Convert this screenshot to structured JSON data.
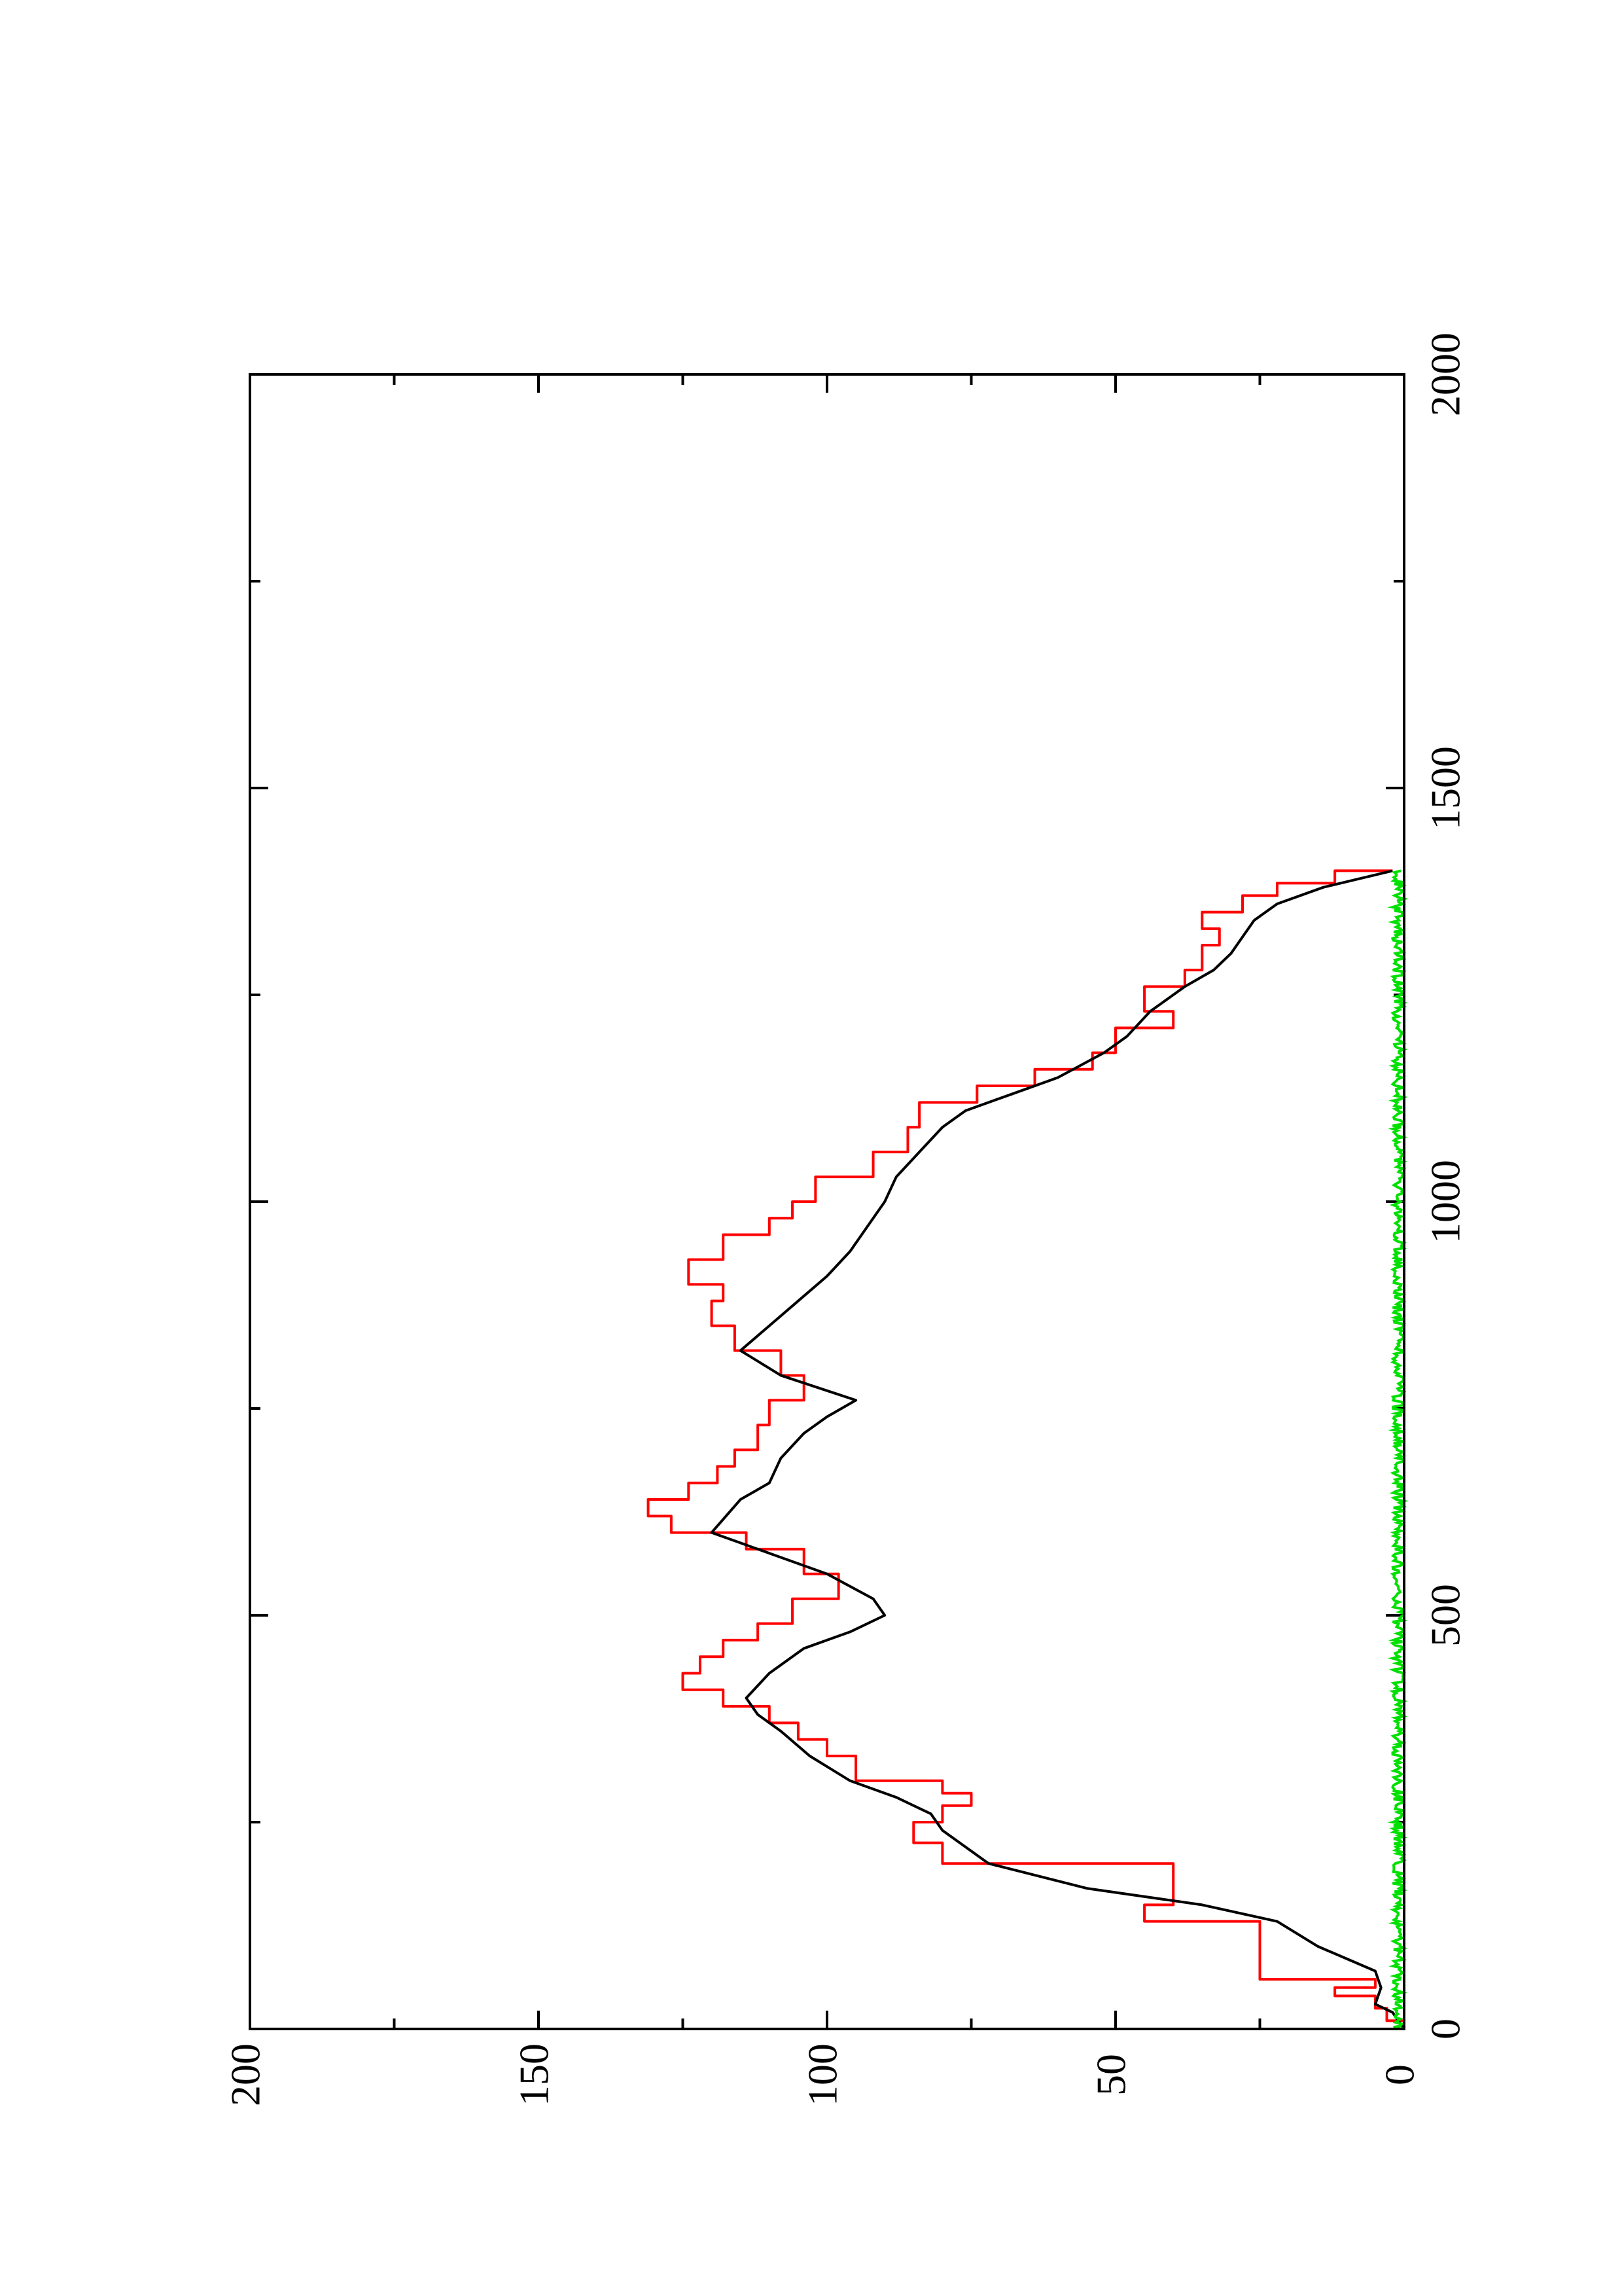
{
  "chart_data": {
    "type": "line",
    "title": "",
    "xlabel": "",
    "ylabel": "",
    "orientation": "page rotated 90 degrees counter-clockwise",
    "xlim": [
      0,
      2000
    ],
    "ylim": [
      0,
      200
    ],
    "x_ticks": [
      0,
      500,
      1000,
      1500,
      2000
    ],
    "x_tick_labels": [
      "0",
      "500",
      "1000",
      "1500",
      "2000"
    ],
    "x_minor_ticks": [
      250,
      750,
      1250,
      1750
    ],
    "y_ticks": [
      0,
      50,
      100,
      150,
      200
    ],
    "y_tick_labels": [
      "0",
      "50",
      "100",
      "150",
      "200"
    ],
    "y_minor_ticks": [
      25,
      75,
      125,
      175
    ],
    "grid": false,
    "legend": "none",
    "series": [
      {
        "color": "#ff0000",
        "style": "step",
        "points": [
          [
            0,
            0
          ],
          [
            10,
            3
          ],
          [
            25,
            5
          ],
          [
            40,
            12
          ],
          [
            50,
            5
          ],
          [
            60,
            25
          ],
          [
            90,
            25
          ],
          [
            130,
            45
          ],
          [
            150,
            40
          ],
          [
            200,
            80
          ],
          [
            225,
            85
          ],
          [
            250,
            80
          ],
          [
            270,
            75
          ],
          [
            285,
            80
          ],
          [
            300,
            95
          ],
          [
            330,
            100
          ],
          [
            350,
            105
          ],
          [
            370,
            110
          ],
          [
            390,
            118
          ],
          [
            410,
            125
          ],
          [
            430,
            122
          ],
          [
            450,
            118
          ],
          [
            470,
            112
          ],
          [
            490,
            106
          ],
          [
            520,
            98
          ],
          [
            550,
            104
          ],
          [
            580,
            114
          ],
          [
            600,
            127
          ],
          [
            620,
            131
          ],
          [
            640,
            124
          ],
          [
            660,
            119
          ],
          [
            680,
            116
          ],
          [
            700,
            112
          ],
          [
            730,
            110
          ],
          [
            760,
            104
          ],
          [
            790,
            108
          ],
          [
            820,
            116
          ],
          [
            850,
            120
          ],
          [
            880,
            118
          ],
          [
            900,
            124
          ],
          [
            930,
            118
          ],
          [
            960,
            110
          ],
          [
            980,
            106
          ],
          [
            1000,
            102
          ],
          [
            1030,
            92
          ],
          [
            1060,
            86
          ],
          [
            1090,
            84
          ],
          [
            1120,
            74
          ],
          [
            1140,
            64
          ],
          [
            1160,
            54
          ],
          [
            1180,
            50
          ],
          [
            1210,
            40
          ],
          [
            1230,
            45
          ],
          [
            1260,
            38
          ],
          [
            1280,
            35
          ],
          [
            1310,
            32
          ],
          [
            1330,
            35
          ],
          [
            1350,
            28
          ],
          [
            1370,
            22
          ],
          [
            1385,
            12
          ],
          [
            1400,
            2
          ]
        ]
      },
      {
        "color": "#000000",
        "style": "line",
        "points": [
          [
            0,
            0
          ],
          [
            20,
            2
          ],
          [
            30,
            5
          ],
          [
            50,
            4
          ],
          [
            70,
            5
          ],
          [
            100,
            15
          ],
          [
            130,
            22
          ],
          [
            150,
            35
          ],
          [
            170,
            55
          ],
          [
            200,
            72
          ],
          [
            240,
            80
          ],
          [
            260,
            82
          ],
          [
            280,
            88
          ],
          [
            300,
            96
          ],
          [
            330,
            103
          ],
          [
            360,
            108
          ],
          [
            380,
            112
          ],
          [
            400,
            114
          ],
          [
            430,
            110
          ],
          [
            460,
            104
          ],
          [
            480,
            96
          ],
          [
            500,
            90
          ],
          [
            520,
            92
          ],
          [
            550,
            100
          ],
          [
            580,
            112
          ],
          [
            600,
            120
          ],
          [
            640,
            115
          ],
          [
            660,
            110
          ],
          [
            690,
            108
          ],
          [
            720,
            104
          ],
          [
            740,
            100
          ],
          [
            760,
            95
          ],
          [
            790,
            108
          ],
          [
            820,
            115
          ],
          [
            850,
            110
          ],
          [
            880,
            105
          ],
          [
            910,
            100
          ],
          [
            940,
            96
          ],
          [
            980,
            92
          ],
          [
            1000,
            90
          ],
          [
            1030,
            88
          ],
          [
            1060,
            84
          ],
          [
            1090,
            80
          ],
          [
            1110,
            76
          ],
          [
            1130,
            68
          ],
          [
            1150,
            60
          ],
          [
            1180,
            52
          ],
          [
            1200,
            48
          ],
          [
            1230,
            44
          ],
          [
            1260,
            38
          ],
          [
            1280,
            33
          ],
          [
            1300,
            30
          ],
          [
            1320,
            28
          ],
          [
            1340,
            26
          ],
          [
            1360,
            22
          ],
          [
            1380,
            14
          ],
          [
            1400,
            2
          ]
        ]
      },
      {
        "color": "#00e000",
        "style": "noise",
        "x_range": [
          0,
          1400
        ],
        "y_range": [
          0,
          2
        ]
      }
    ]
  }
}
